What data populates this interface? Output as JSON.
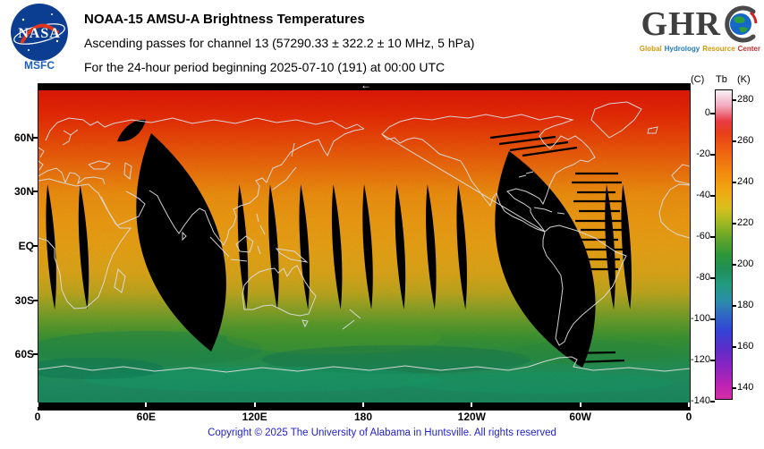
{
  "header": {
    "nasa": {
      "insignia_text": "NASA",
      "center_label": "MSFC"
    },
    "title": "NOAA-15 AMSU-A Brightness Temperatures",
    "subtitle": "Ascending passes for channel 13 (57290.33 ± 322.2 ± 10 MHz, 5 hPa)",
    "period_line": "For the 24-hour period beginning 2025-07-10 (191) at 00:00 UTC",
    "ghrc": {
      "acronym_prefix": "GHR",
      "subtitle_words": [
        {
          "text": "Global",
          "color": "#d29a08"
        },
        {
          "text": "Hydrology",
          "color": "#1f7ac0"
        },
        {
          "text": "Resource",
          "color": "#d29a08"
        },
        {
          "text": "Center",
          "color": "#c03030"
        }
      ]
    }
  },
  "map": {
    "direction_arrow": "←",
    "y_ticks": [
      {
        "label": "60N",
        "lat": 60
      },
      {
        "label": "30N",
        "lat": 30
      },
      {
        "label": "EQ",
        "lat": 0
      },
      {
        "label": "30S",
        "lat": -30
      },
      {
        "label": "60S",
        "lat": -60
      }
    ],
    "x_ticks": [
      {
        "label": "0",
        "lon": 0
      },
      {
        "label": "60E",
        "lon": 60
      },
      {
        "label": "120E",
        "lon": 120
      },
      {
        "label": "180",
        "lon": 180
      },
      {
        "label": "120W",
        "lon": 240
      },
      {
        "label": "60W",
        "lon": 300
      },
      {
        "label": "0",
        "lon": 360
      }
    ]
  },
  "colorbar": {
    "unit_c": "(C)",
    "unit_name": "Tb",
    "unit_k": "(K)",
    "kelvin_ticks": [
      280,
      260,
      240,
      220,
      200,
      180,
      160,
      140
    ],
    "celsius_ticks": [
      0,
      -20,
      -40,
      -60,
      -80,
      -100,
      -120,
      -140
    ]
  },
  "footer": {
    "copyright": "Copyright © 2025 The University of Alabama in Huntsville.  All rights reserved"
  },
  "chart_data": {
    "type": "heatmap",
    "title": "NOAA-15 AMSU-A Brightness Temperatures",
    "subtitle": "Ascending passes for channel 13 (57290.33 ± 322.2 ± 10 MHz, 5 hPa)",
    "period": "For the 24-hour period beginning 2025-07-10 (191) at 00:00 UTC",
    "satellite": "NOAA-15",
    "instrument": "AMSU-A",
    "channel": 13,
    "frequency_mhz": "57290.33 ± 322.2 ± 10",
    "pressure_level_hpa": 5,
    "date": "2025-07-10",
    "day_of_year": 191,
    "start_time_utc": "00:00",
    "pass_type": "Ascending",
    "projection": "equirectangular world map, longitude 0 eastward through 180 back to 0 (0-360E)",
    "x_tick_labels": [
      "0",
      "60E",
      "120E",
      "180",
      "120W",
      "60W",
      "0"
    ],
    "y_tick_labels": [
      "60N",
      "30N",
      "EQ",
      "30S",
      "60S"
    ],
    "colorbar": {
      "quantity": "Tb",
      "units": [
        "(C)",
        "(K)"
      ],
      "kelvin_ticks": [
        280,
        260,
        240,
        220,
        200,
        180,
        160,
        140
      ],
      "celsius_ticks": [
        0,
        -20,
        -40,
        -60,
        -80,
        -100,
        -120,
        -140
      ],
      "range_k": [
        135,
        285
      ],
      "color_order_top_to_bottom": [
        "white",
        "pink",
        "red",
        "orange",
        "yellow",
        "yellow-green",
        "green",
        "teal",
        "blue",
        "violet",
        "magenta"
      ]
    },
    "approx_tb_by_latitude_k": [
      {
        "lat_deg": 85,
        "tb_k": 262
      },
      {
        "lat_deg": 60,
        "tb_k": 256
      },
      {
        "lat_deg": 30,
        "tb_k": 249
      },
      {
        "lat_deg": 0,
        "tb_k": 246
      },
      {
        "lat_deg": -30,
        "tb_k": 234
      },
      {
        "lat_deg": -55,
        "tb_k": 216
      },
      {
        "lat_deg": -75,
        "tb_k": 206
      }
    ],
    "no_data_regions": {
      "note": "black = no data: thin polar strips top/bottom, lens-shaped gaps between ascending swaths, two large unsampled regions with scan-line dropouts",
      "sliver_gap_longitudes_deg_e": [
        7,
        25,
        113,
        130,
        147,
        165,
        182,
        200,
        217,
        234,
        316,
        325
      ],
      "large_gap_center_longitudes_deg_e": [
        81,
        282
      ]
    }
  }
}
